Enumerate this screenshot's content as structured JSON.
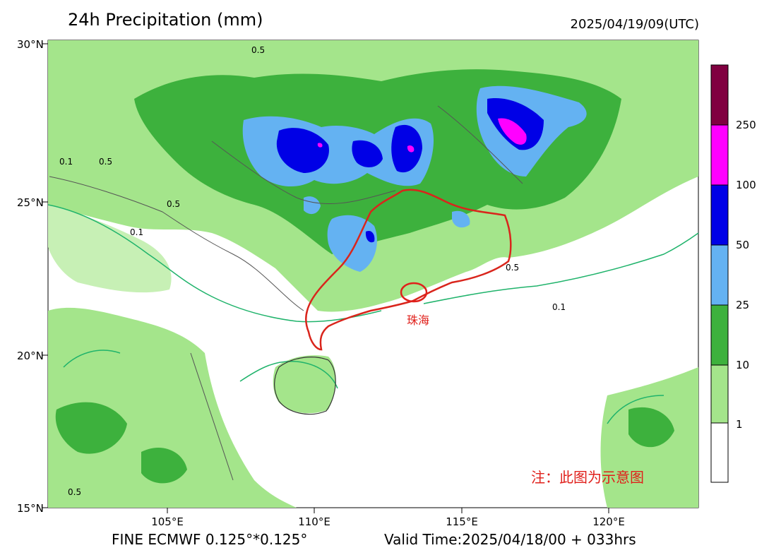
{
  "title": "24h Precipitation (mm)",
  "datetime": "2025/04/19/09(UTC)",
  "lat_labels": [
    "30°N",
    "25°N",
    "20°N",
    "15°N"
  ],
  "lon_labels": [
    "105°E",
    "110°E",
    "115°E",
    "120°E"
  ],
  "footer_model": "FINE ECMWF 0.125°*0.125°",
  "footer_valid": "Valid Time:2025/04/18/00 + 033hrs",
  "legend": {
    "levels": [
      "1",
      "10",
      "25",
      "50",
      "100",
      "250"
    ],
    "colors": [
      "#ffffff",
      "#a4e58b",
      "#3db13d",
      "#64b2f2",
      "#0000e6",
      "#ff00ff",
      "#800040"
    ]
  },
  "contour_labels": [
    "0.5",
    "0.1"
  ],
  "city_label": "珠海",
  "note": "注：此图为示意图",
  "colors": {
    "guangdong_border": "#d9251c",
    "contour": "#1fb36b",
    "city_marker": "#e0201b"
  }
}
